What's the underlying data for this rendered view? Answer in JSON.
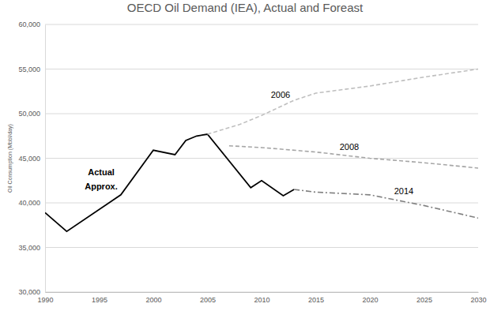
{
  "chart_data": {
    "type": "line",
    "title": "OECD Oil Demand (IEA), Actual and Foreast",
    "y_label": "Oil Consumption  (Mbbl/day)",
    "xlim": [
      1990,
      2030
    ],
    "xticks": [
      1990,
      1995,
      2000,
      2005,
      2010,
      2015,
      2020,
      2025,
      2030
    ],
    "ylim": [
      30000,
      60000
    ],
    "yticks": [
      {
        "value": 30000,
        "label": "30,000"
      },
      {
        "value": 35000,
        "label": "35,000"
      },
      {
        "value": 40000,
        "label": "40,000"
      },
      {
        "value": 45000,
        "label": "45,000"
      },
      {
        "value": 50000,
        "label": "50,000"
      },
      {
        "value": 55000,
        "label": "55,000"
      },
      {
        "value": 60000,
        "label": "60,000"
      }
    ],
    "grid": true,
    "series": [
      {
        "name": "Actual Approx.",
        "color": "#000000",
        "line_style": "solid",
        "x": [
          1990,
          1992,
          1997,
          2000,
          2002,
          2003,
          2004,
          2005,
          2009,
          2010,
          2012,
          2013
        ],
        "values": [
          38900,
          36800,
          40900,
          45900,
          45400,
          47000,
          47500,
          47700,
          41700,
          42500,
          40800,
          41500
        ]
      },
      {
        "name": "2006",
        "color": "#bfbfbf",
        "line_style": "dashed",
        "x": [
          2005,
          2008,
          2010,
          2013,
          2015,
          2020,
          2025,
          2030
        ],
        "values": [
          47700,
          48800,
          49800,
          51500,
          52300,
          53100,
          54100,
          55000
        ]
      },
      {
        "name": "2008",
        "color": "#a6a6a6",
        "line_style": "dashed",
        "x": [
          2007,
          2010,
          2015,
          2020,
          2025,
          2030
        ],
        "values": [
          46400,
          46200,
          45700,
          45000,
          44500,
          43900
        ]
      },
      {
        "name": "2014",
        "color": "#808080",
        "line_style": "dashdot",
        "x": [
          2013,
          2015,
          2020,
          2025,
          2030
        ],
        "values": [
          41500,
          41200,
          40900,
          39700,
          38300
        ]
      }
    ]
  }
}
